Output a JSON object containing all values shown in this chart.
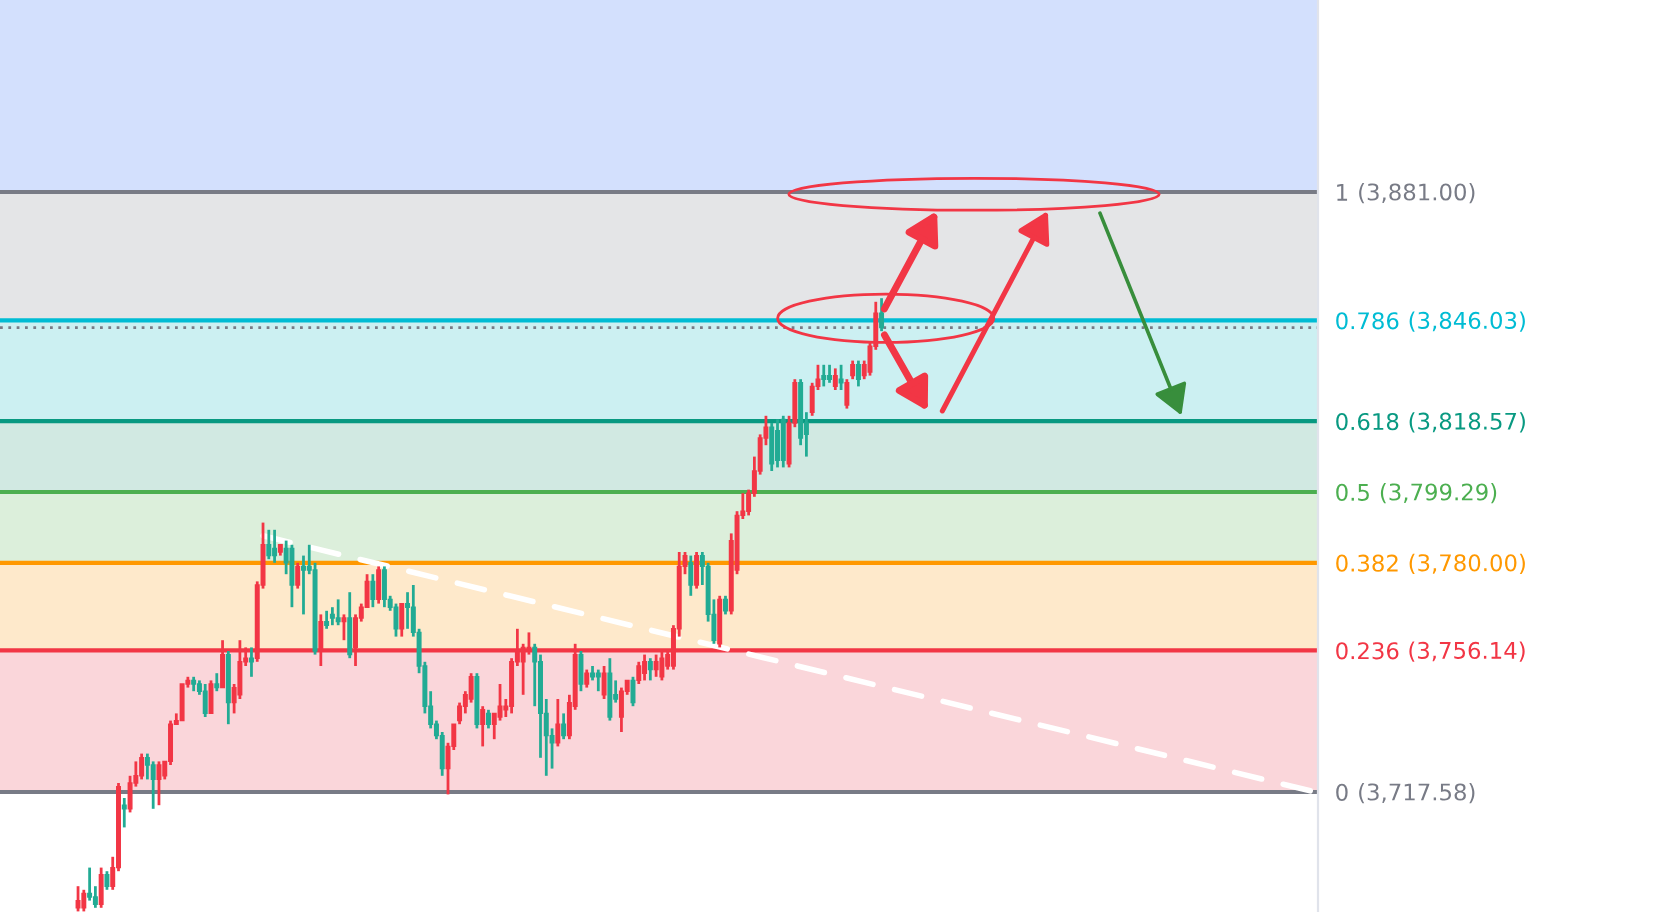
{
  "chart_data": {
    "type": "candlestick",
    "tick_labels": "y",
    "categories": [
      null,
      null,
      null,
      null,
      null,
      null,
      null,
      null,
      null,
      null,
      null,
      null,
      null,
      null,
      null,
      null,
      null,
      null,
      null,
      null,
      null,
      null,
      null,
      null,
      null,
      null,
      null,
      null,
      null,
      null,
      null,
      null,
      null,
      null,
      null,
      null,
      null,
      null,
      null,
      null,
      null,
      null,
      null,
      null,
      null,
      null,
      null,
      null,
      null,
      null,
      null,
      null,
      null,
      null,
      null,
      null,
      null,
      null,
      null,
      null,
      null,
      null,
      null,
      null,
      null,
      null,
      null,
      null,
      null,
      null,
      null,
      null,
      null,
      null,
      null,
      null,
      null,
      null,
      null,
      null,
      null,
      null,
      null,
      null,
      null,
      null,
      null,
      null,
      null,
      null,
      null,
      null,
      null,
      null,
      null,
      null,
      null,
      null,
      null,
      null,
      null,
      null,
      null,
      null,
      null,
      null,
      null,
      null,
      null,
      null,
      null,
      null,
      null,
      null,
      null,
      null,
      null,
      null,
      null,
      null,
      null,
      null,
      null,
      null,
      null,
      null,
      null,
      null,
      null,
      null,
      null,
      null,
      null,
      null,
      null,
      null,
      null,
      null,
      null,
      null,
      null,
      null,
      null,
      null,
      null,
      null,
      null,
      null,
      null,
      null,
      null,
      null,
      null,
      null,
      null,
      null,
      null,
      null,
      null,
      null,
      null,
      null,
      null,
      null,
      null,
      null,
      null,
      null,
      null,
      null,
      null,
      null,
      null,
      null,
      null,
      null,
      null,
      null,
      null,
      null,
      null,
      null,
      null,
      null,
      null,
      null,
      null,
      null,
      null,
      null,
      null,
      null,
      null,
      null,
      null,
      null,
      null,
      null,
      null,
      null,
      null,
      null,
      null,
      null,
      null,
      null,
      null,
      null,
      null,
      null,
      null,
      null,
      null,
      null,
      null,
      null,
      null,
      null,
      null,
      null,
      null,
      null,
      null,
      null,
      null,
      null,
      null,
      null
    ],
    "ylim": [
      -0.2,
      1.32
    ],
    "yticks": [
      1,
      0.786,
      0.618,
      0.5,
      0.382,
      0.236,
      0
    ],
    "annotations": [
      "(3,881.00)",
      "(3,846.03)",
      "(3,818.57)",
      "(3,799.29)",
      "(3,780.00)",
      "(3,756.14)",
      "(3,717.58)"
    ],
    "series": [
      {
        "type": "line",
        "color": "#ffffff",
        "line_style": "dashed",
        "values": [
          null,
          null,
          null,
          null,
          null,
          null,
          null,
          null,
          null,
          null,
          null,
          null,
          null,
          null,
          null,
          null,
          null,
          null,
          null,
          null,
          null,
          null,
          null,
          null,
          null,
          null,
          null,
          null,
          null,
          null,
          null,
          null,
          null,
          null,
          null,
          null,
          null,
          null,
          null,
          null,
          null,
          null,
          null,
          null,
          null,
          0.427,
          null,
          null,
          null,
          null,
          null,
          null,
          null,
          null,
          null,
          null,
          null,
          null,
          null,
          null,
          null,
          null,
          null,
          null,
          null,
          null,
          null,
          null,
          null,
          null,
          null,
          null,
          null,
          null,
          null,
          null,
          null,
          null,
          null,
          null,
          null,
          null,
          null,
          null,
          null,
          null,
          null,
          null,
          null,
          null,
          null,
          null,
          null,
          null,
          null,
          null,
          null,
          null,
          null,
          null,
          null,
          null,
          null,
          null,
          null,
          null,
          null,
          null,
          null,
          null,
          null,
          null,
          null,
          null,
          null,
          null,
          null,
          null,
          null,
          null,
          null,
          null,
          null,
          null,
          null,
          null,
          null,
          null,
          null,
          null,
          null,
          null,
          null,
          null,
          null,
          null,
          null,
          null,
          null,
          null,
          null,
          null,
          null,
          null,
          null,
          null,
          null,
          null,
          null,
          null,
          null,
          null,
          null,
          null,
          null,
          null,
          null,
          null,
          null,
          null,
          null,
          null,
          null,
          null,
          null,
          null,
          null,
          null,
          null,
          null,
          null,
          null,
          null,
          null,
          null,
          null,
          null,
          null,
          null,
          null,
          null,
          null,
          null,
          null,
          null,
          null,
          null,
          null,
          null,
          null,
          null,
          null,
          null,
          null,
          null,
          null,
          null,
          null,
          null,
          null,
          null,
          null,
          null,
          null,
          null,
          null,
          null,
          null,
          null,
          null,
          null,
          null,
          null,
          null,
          null,
          null,
          null,
          null,
          null,
          null,
          null,
          null,
          null,
          null,
          null,
          null,
          null,
          0
        ]
      }
    ],
    "ohlc": [
      null,
      null,
      null,
      null,
      null,
      null,
      null,
      null,
      null,
      null,
      null,
      null,
      null,
      [
        -0.193,
        -0.157,
        -0.199,
        -0.181
      ],
      [
        -0.193,
        -0.163,
        -0.199,
        -0.169
      ],
      [
        -0.169,
        -0.126,
        -0.181,
        -0.175
      ],
      [
        -0.175,
        -0.157,
        -0.193,
        -0.187
      ],
      [
        -0.187,
        -0.126,
        -0.193,
        -0.138
      ],
      [
        -0.138,
        -0.132,
        -0.163,
        -0.157
      ],
      [
        -0.157,
        -0.108,
        -0.163,
        -0.126
      ],
      [
        -0.126,
        0.015,
        -0.132,
        0.009
      ],
      [
        -0.022,
        -0.01,
        -0.059,
        -0.028
      ],
      [
        -0.028,
        0.027,
        -0.034,
        0.015
      ],
      [
        0.015,
        0.051,
        0.009,
        0.027
      ],
      [
        0.027,
        0.064,
        0.021,
        0.057
      ],
      [
        0.057,
        0.064,
        0.021,
        0.045
      ],
      [
        0.045,
        0.051,
        -0.028,
        0.021
      ],
      [
        0.021,
        0.051,
        -0.022,
        0.045
      ],
      [
        0.027,
        0.051,
        0.021,
        0.051
      ],
      [
        0.051,
        0.119,
        0.045,
        0.113
      ],
      [
        0.113,
        0.131,
        0.113,
        0.119
      ],
      [
        0.119,
        0.18,
        0.119,
        0.18
      ],
      [
        0.18,
        0.192,
        0.174,
        0.186
      ],
      [
        0.186,
        0.192,
        0.168,
        0.18
      ],
      [
        0.18,
        0.186,
        0.162,
        0.168
      ],
      [
        0.168,
        0.18,
        0.125,
        0.131
      ],
      [
        0.131,
        0.186,
        0.131,
        0.18
      ],
      [
        0.18,
        0.198,
        0.168,
        0.174
      ],
      [
        0.174,
        0.253,
        0.174,
        0.229
      ],
      [
        0.229,
        0.235,
        0.113,
        0.149
      ],
      [
        0.149,
        0.18,
        0.131,
        0.174
      ],
      [
        0.162,
        0.253,
        0.155,
        0.217
      ],
      [
        0.217,
        0.241,
        0.21,
        0.223
      ],
      [
        0.223,
        0.241,
        0.192,
        0.217
      ],
      [
        0.223,
        0.351,
        0.217,
        0.345
      ],
      [
        0.345,
        0.449,
        0.339,
        0.412
      ],
      [
        0.412,
        0.437,
        0.388,
        0.394
      ],
      [
        0.406,
        0.437,
        0.382,
        0.394
      ],
      [
        0.4,
        0.412,
        0.394,
        0.412
      ],
      [
        0.406,
        0.419,
        0.363,
        0.382
      ],
      [
        0.406,
        0.412,
        0.308,
        0.345
      ],
      [
        0.345,
        0.382,
        0.339,
        0.376
      ],
      [
        0.376,
        0.394,
        0.296,
        0.37
      ],
      [
        0.376,
        0.412,
        0.363,
        0.37
      ],
      [
        0.37,
        0.382,
        0.229,
        0.235
      ],
      [
        0.235,
        0.296,
        0.21,
        0.284
      ],
      [
        0.284,
        0.302,
        0.272,
        0.278
      ],
      [
        0.296,
        0.308,
        0.278,
        0.29
      ],
      [
        0.29,
        0.321,
        0.278,
        0.284
      ],
      [
        0.284,
        0.296,
        0.253,
        0.29
      ],
      [
        0.29,
        0.333,
        0.223,
        0.229
      ],
      [
        0.241,
        0.296,
        0.21,
        0.29
      ],
      [
        0.29,
        0.314,
        0.284,
        0.308
      ],
      [
        0.308,
        0.363,
        0.308,
        0.351
      ],
      [
        0.351,
        0.363,
        0.308,
        0.321
      ],
      [
        0.321,
        0.376,
        0.314,
        0.37
      ],
      [
        0.37,
        0.376,
        0.308,
        0.321
      ],
      [
        0.321,
        0.327,
        0.302,
        0.308
      ],
      [
        0.308,
        0.314,
        0.259,
        0.272
      ],
      [
        0.272,
        0.314,
        0.259,
        0.314
      ],
      [
        0.314,
        0.333,
        0.272,
        0.308
      ],
      [
        0.308,
        0.345,
        0.259,
        0.266
      ],
      [
        0.266,
        0.272,
        0.198,
        0.21
      ],
      [
        0.21,
        0.217,
        0.131,
        0.143
      ],
      [
        0.143,
        0.168,
        0.106,
        0.113
      ],
      [
        0.113,
        0.119,
        0.088,
        0.094
      ],
      [
        0.094,
        0.1,
        0.027,
        0.039
      ],
      [
        0.039,
        0.082,
        -0.004,
        0.076
      ],
      [
        0.076,
        0.113,
        0.07,
        0.113
      ],
      [
        0.119,
        0.149,
        0.113,
        0.143
      ],
      [
        0.143,
        0.168,
        0.131,
        0.162
      ],
      [
        0.155,
        0.198,
        0.149,
        0.192
      ],
      [
        0.192,
        0.198,
        0.106,
        0.113
      ],
      [
        0.113,
        0.143,
        0.076,
        0.137
      ],
      [
        0.131,
        0.137,
        0.106,
        0.113
      ],
      [
        0.113,
        0.131,
        0.088,
        0.131
      ],
      [
        0.125,
        0.18,
        0.119,
        0.143
      ],
      [
        0.137,
        0.155,
        0.125,
        0.143
      ],
      [
        0.143,
        0.223,
        0.131,
        0.217
      ],
      [
        0.217,
        0.272,
        0.21,
        0.235
      ],
      [
        0.217,
        0.247,
        0.162,
        0.241
      ],
      [
        0.235,
        0.266,
        0.229,
        0.241
      ],
      [
        0.241,
        0.247,
        0.143,
        0.217
      ],
      [
        0.217,
        0.229,
        0.057,
        0.131
      ],
      [
        0.131,
        0.155,
        0.027,
        0.094
      ],
      [
        0.094,
        0.106,
        0.039,
        0.082
      ],
      [
        0.082,
        0.155,
        0.076,
        0.113
      ],
      [
        0.113,
        0.131,
        0.088,
        0.094
      ],
      [
        0.094,
        0.162,
        0.088,
        0.149
      ],
      [
        0.143,
        0.247,
        0.137,
        0.229
      ],
      [
        0.229,
        0.235,
        0.168,
        0.18
      ],
      [
        0.18,
        0.204,
        0.174,
        0.198
      ],
      [
        0.198,
        0.21,
        0.186,
        0.192
      ],
      [
        0.198,
        0.204,
        0.168,
        0.192
      ],
      [
        0.162,
        0.21,
        0.155,
        0.198
      ],
      [
        0.198,
        0.223,
        0.119,
        0.125
      ],
      [
        0.162,
        0.186,
        0.149,
        0.155
      ],
      [
        0.125,
        0.174,
        0.1,
        0.168
      ],
      [
        0.168,
        0.186,
        0.162,
        0.186
      ],
      [
        0.186,
        0.192,
        0.143,
        0.149
      ],
      [
        0.186,
        0.217,
        0.18,
        0.21
      ],
      [
        0.198,
        0.229,
        0.186,
        0.217
      ],
      [
        0.217,
        0.223,
        0.186,
        0.204
      ],
      [
        0.204,
        0.229,
        0.192,
        0.217
      ],
      [
        0.192,
        0.235,
        0.186,
        0.223
      ],
      [
        0.21,
        0.235,
        0.204,
        0.229
      ],
      [
        0.21,
        0.278,
        0.204,
        0.272
      ],
      [
        0.272,
        0.4,
        0.259,
        0.376
      ],
      [
        0.376,
        0.4,
        0.363,
        0.394
      ],
      [
        0.382,
        0.394,
        0.327,
        0.345
      ],
      [
        0.345,
        0.4,
        0.339,
        0.394
      ],
      [
        0.394,
        0.4,
        0.345,
        0.376
      ],
      [
        0.376,
        0.382,
        0.284,
        0.296
      ],
      [
        0.296,
        0.321,
        0.247,
        0.253
      ],
      [
        0.247,
        0.327,
        0.241,
        0.321
      ],
      [
        0.321,
        0.327,
        0.296,
        0.302
      ],
      [
        0.302,
        0.431,
        0.296,
        0.419
      ],
      [
        0.37,
        0.468,
        0.363,
        0.461
      ],
      [
        0.461,
        0.498,
        0.455,
        0.468
      ],
      [
        0.468,
        0.504,
        0.461,
        0.498
      ],
      [
        0.498,
        0.559,
        0.492,
        0.535
      ],
      [
        0.535,
        0.596,
        0.529,
        0.59
      ],
      [
        0.59,
        0.627,
        0.578,
        0.608
      ],
      [
        0.608,
        0.615,
        0.535,
        0.547
      ],
      [
        0.602,
        0.621,
        0.541,
        0.553
      ],
      [
        0.621,
        0.627,
        0.541,
        0.553
      ],
      [
        0.547,
        0.627,
        0.541,
        0.615
      ],
      [
        0.615,
        0.688,
        0.608,
        0.682
      ],
      [
        0.682,
        0.688,
        0.578,
        0.59
      ],
      [
        0.615,
        0.633,
        0.559,
        0.596
      ],
      [
        0.633,
        0.682,
        0.627,
        0.676
      ],
      [
        0.676,
        0.712,
        0.67,
        0.688
      ],
      [
        0.694,
        0.712,
        0.676,
        0.688
      ],
      [
        0.694,
        0.712,
        0.682,
        0.688
      ],
      [
        0.676,
        0.706,
        0.67,
        0.694
      ],
      [
        0.688,
        0.712,
        0.67,
        0.682
      ],
      [
        0.645,
        0.688,
        0.639,
        0.682
      ],
      [
        0.694,
        0.719,
        0.688,
        0.712
      ],
      [
        0.712,
        0.719,
        0.676,
        0.688
      ],
      [
        0.694,
        0.719,
        0.688,
        0.712
      ],
      [
        0.7,
        0.749,
        0.694,
        0.743
      ],
      [
        0.743,
        0.817,
        0.737,
        0.798
      ],
      [
        0.798,
        0.823,
        0.768,
        0.774
      ],
      null,
      null,
      null,
      null,
      null,
      null,
      null,
      null,
      null,
      null,
      null,
      null,
      null,
      null,
      null,
      null,
      null,
      null,
      null,
      null,
      null,
      null,
      null,
      null,
      null,
      null,
      null,
      null,
      null,
      null,
      null,
      null,
      null,
      null,
      null,
      null,
      null,
      null,
      null,
      null,
      null,
      null,
      null,
      null,
      null,
      null,
      null,
      null,
      null,
      null,
      null,
      null,
      null,
      null,
      null,
      null,
      null,
      null,
      null,
      null,
      null,
      null,
      null,
      null,
      null,
      null,
      null,
      null,
      null,
      null,
      null,
      null,
      null,
      null,
      null
    ],
    "colors": [
      null,
      null,
      null,
      null,
      null,
      null,
      null,
      null,
      null,
      null,
      null,
      null,
      null,
      "#f23645",
      "#f23645",
      "#22ab94",
      "#22ab94",
      "#f23645",
      "#22ab94",
      "#f23645",
      "#f23645",
      "#22ab94",
      "#f23645",
      "#f23645",
      "#f23645",
      "#22ab94",
      "#22ab94",
      "#f23645",
      "#f23645",
      "#f23645",
      "#f23645",
      "#f23645",
      "#f23645",
      "#22ab94",
      "#22ab94",
      "#22ab94",
      "#f23645",
      "#22ab94",
      "#f23645",
      "#22ab94",
      "#f23645",
      "#f23645",
      "#f23645",
      "#22ab94",
      "#f23645",
      "#f23645",
      "#22ab94",
      "#22ab94",
      "#f23645",
      "#22ab94",
      "#22ab94",
      "#f23645",
      "#22ab94",
      "#22ab94",
      "#22ab94",
      "#f23645",
      "#22ab94",
      "#22ab94",
      "#22ab94",
      "#f23645",
      "#22ab94",
      "#f23645",
      "#f23645",
      "#f23645",
      "#22ab94",
      "#f23645",
      "#22ab94",
      "#22ab94",
      "#22ab94",
      "#f23645",
      "#22ab94",
      "#22ab94",
      "#22ab94",
      "#22ab94",
      "#22ab94",
      "#22ab94",
      "#22ab94",
      "#f23645",
      "#f23645",
      "#f23645",
      "#f23645",
      "#f23645",
      "#22ab94",
      "#f23645",
      "#22ab94",
      "#f23645",
      "#f23645",
      "#f23645",
      "#f23645",
      "#f23645",
      "#f23645",
      "#f23645",
      "#22ab94",
      "#22ab94",
      "#22ab94",
      "#22ab94",
      "#f23645",
      "#22ab94",
      "#f23645",
      "#f23645",
      "#22ab94",
      "#f23645",
      "#22ab94",
      "#22ab94",
      "#f23645",
      "#22ab94",
      "#22ab94",
      "#f23645",
      "#f23645",
      "#22ab94",
      "#f23645",
      "#f23645",
      "#22ab94",
      "#f23645",
      "#f23645",
      "#f23645",
      "#f23645",
      "#f23645",
      "#f23645",
      "#22ab94",
      "#f23645",
      "#22ab94",
      "#22ab94",
      "#22ab94",
      "#f23645",
      "#22ab94",
      "#f23645",
      "#f23645",
      "#f23645",
      "#f23645",
      "#f23645",
      "#f23645",
      "#f23645",
      "#22ab94",
      "#22ab94",
      "#22ab94",
      "#f23645",
      "#f23645",
      "#22ab94",
      "#22ab94",
      "#f23645",
      "#f23645",
      "#22ab94",
      "#22ab94",
      "#f23645",
      "#22ab94",
      "#f23645",
      "#f23645",
      "#22ab94",
      "#f23645",
      "#f23645",
      "#f23645",
      "#22ab94",
      null,
      null,
      null,
      null,
      null,
      null,
      null,
      null,
      null,
      null,
      null,
      null,
      null,
      null,
      null,
      null,
      null,
      null,
      null,
      null,
      null,
      null,
      null,
      null,
      null,
      null,
      null,
      null,
      null,
      null,
      null,
      null,
      null,
      null,
      null,
      null,
      null,
      null,
      null,
      null,
      null,
      null,
      null,
      null,
      null,
      null,
      null,
      null,
      null,
      null,
      null,
      null,
      null,
      null,
      null,
      null,
      null,
      null,
      null,
      null,
      null,
      null,
      null,
      null,
      null,
      null,
      null,
      null,
      null,
      null,
      null,
      null,
      null,
      null,
      null
    ],
    "bands": [
      {
        "axis": "y",
        "from": 1,
        "to": 1.32,
        "color": "#d3e0fd"
      },
      {
        "axis": "y",
        "from": 0.786,
        "to": 1,
        "color": "#e4e5e7"
      },
      {
        "axis": "y",
        "from": 0.618,
        "to": 0.786,
        "color": "#ccf0f2"
      },
      {
        "axis": "y",
        "from": 0.5,
        "to": 0.618,
        "color": "#d1e9e2"
      },
      {
        "axis": "y",
        "from": 0.382,
        "to": 0.5,
        "color": "#dcefdb"
      },
      {
        "axis": "y",
        "from": 0.236,
        "to": 0.382,
        "color": "#fee9cb"
      },
      {
        "axis": "y",
        "from": 0,
        "to": 0.236,
        "color": "#fad6da"
      }
    ],
    "ref_lines": [
      {
        "axis": "y",
        "value": 1,
        "color": "#787b86"
      },
      {
        "axis": "y",
        "value": 0.786,
        "color": "#00bcd4"
      },
      {
        "axis": "y",
        "value": 0.618,
        "color": "#089981"
      },
      {
        "axis": "y",
        "value": 0.5,
        "color": "#4caf50"
      },
      {
        "axis": "y",
        "value": 0.382,
        "color": "#ff9800"
      },
      {
        "axis": "y",
        "value": 0.236,
        "color": "#f23645"
      },
      {
        "axis": "y",
        "value": 0,
        "color": "#787b86"
      },
      {
        "axis": "y",
        "value": 0.774,
        "color": "#787b86",
        "line_style": "dotted"
      }
    ]
  }
}
